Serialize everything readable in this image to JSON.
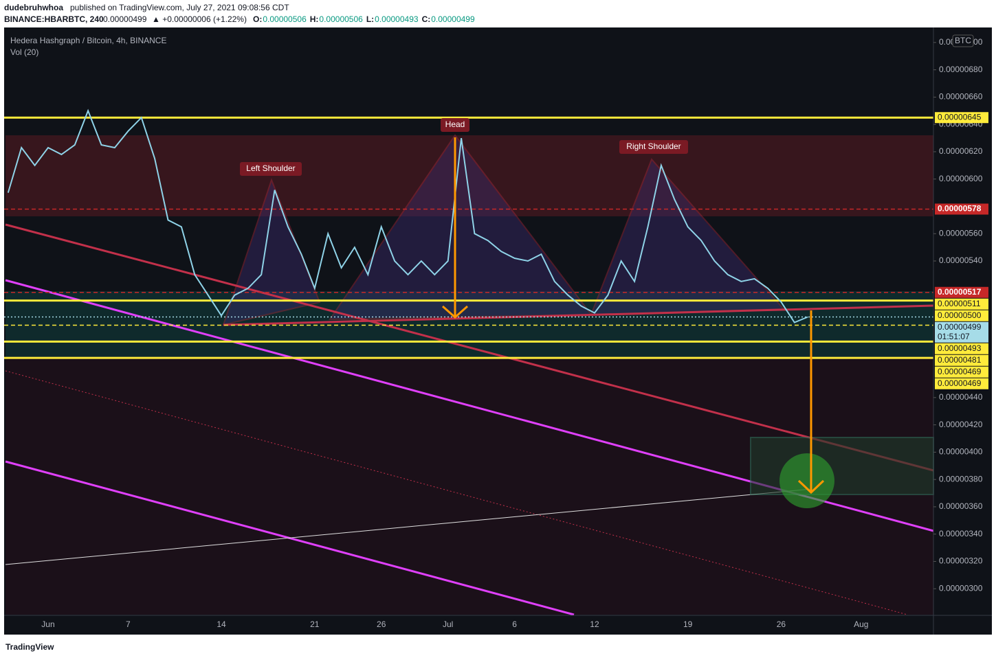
{
  "header": {
    "author": "dudebruhwhoa",
    "published": "published on TradingView.com, July 27, 2021 09:08:56 CDT",
    "symbol": "BINANCE:HBARBTC, 240",
    "last": "0.00000499",
    "change": "▲ +0.00000006 (+1.22%)",
    "ohlc": [
      {
        "key": "O:",
        "value": "0.00000506"
      },
      {
        "key": "H:",
        "value": "0.00000506"
      },
      {
        "key": "L:",
        "value": "0.00000493"
      },
      {
        "key": "C:",
        "value": "0.00000499"
      }
    ]
  },
  "chart_data": {
    "type": "line",
    "title": "Hedera Hashgraph / Bitcoin, 4h, BINANCE",
    "subtitle": "Vol (20)",
    "currency": "BTC",
    "color": "#8fd3e8",
    "categories": [
      null,
      null,
      null,
      "Jun",
      null,
      null,
      null,
      null,
      null,
      "7",
      null,
      null,
      null,
      null,
      null,
      null,
      "14",
      null,
      null,
      null,
      null,
      null,
      null,
      "21",
      null,
      null,
      null,
      null,
      "26",
      null,
      null,
      null,
      null,
      "Jul",
      null,
      null,
      null,
      null,
      "6",
      null,
      null,
      null,
      null,
      null,
      "12",
      null,
      null,
      null,
      null,
      null,
      null,
      "19",
      null,
      null,
      null,
      null,
      null,
      null,
      "26",
      null,
      null,
      null,
      null,
      null,
      "Aug",
      null,
      null,
      null,
      null,
      null
    ],
    "values": [
      5.9e-06,
      6.23e-06,
      6.1e-06,
      6.23e-06,
      6.18e-06,
      6.25e-06,
      6.5e-06,
      6.25e-06,
      6.23e-06,
      6.35e-06,
      6.45e-06,
      6.15e-06,
      5.7e-06,
      5.65e-06,
      5.3e-06,
      5.15e-06,
      5e-06,
      5.15e-06,
      5.2e-06,
      5.3e-06,
      5.92e-06,
      5.65e-06,
      5.45e-06,
      5.2e-06,
      5.6e-06,
      5.35e-06,
      5.5e-06,
      5.3e-06,
      5.65e-06,
      5.4e-06,
      5.3e-06,
      5.4e-06,
      5.3e-06,
      5.4e-06,
      6.3e-06,
      5.6e-06,
      5.55e-06,
      5.47e-06,
      5.42e-06,
      5.4e-06,
      5.45e-06,
      5.25e-06,
      5.15e-06,
      5.07e-06,
      5.02e-06,
      5.15e-06,
      5.4e-06,
      5.25e-06,
      5.65e-06,
      6.1e-06,
      5.85e-06,
      5.65e-06,
      5.55e-06,
      5.4e-06,
      5.3e-06,
      5.25e-06,
      5.27e-06,
      5.2e-06,
      5.1e-06,
      4.95e-06,
      4.99e-06,
      null,
      null,
      null,
      null,
      null,
      null,
      null,
      null,
      null
    ],
    "ylim": [
      2.81e-06,
      7.11e-06
    ],
    "yticks": [
      {
        "value": 7e-06,
        "label": "0.00000700"
      },
      {
        "value": 6.8e-06,
        "label": "0.00000680"
      },
      {
        "value": 6.6e-06,
        "label": "0.00000660"
      },
      {
        "value": 6.4e-06,
        "label": "0.00000640"
      },
      {
        "value": 6.2e-06,
        "label": "0.00000620"
      },
      {
        "value": 6e-06,
        "label": "0.00000600"
      },
      {
        "value": 5.6e-06,
        "label": "0.00000560"
      },
      {
        "value": 5.4e-06,
        "label": "0.00000540"
      },
      {
        "value": 4.4e-06,
        "label": "0.00000440"
      },
      {
        "value": 4.2e-06,
        "label": "0.00000420"
      },
      {
        "value": 4e-06,
        "label": "0.00000400"
      },
      {
        "value": 3.8e-06,
        "label": "0.00000380"
      },
      {
        "value": 3.6e-06,
        "label": "0.00000360"
      },
      {
        "value": 3.4e-06,
        "label": "0.00000340"
      },
      {
        "value": 3.2e-06,
        "label": "0.00000320"
      },
      {
        "value": 3e-06,
        "label": "0.00000300"
      }
    ],
    "grid": false,
    "price_tags": [
      {
        "value": 6.45e-06,
        "label": "0.00000645",
        "color": "#ffeb3b",
        "line": "solid"
      },
      {
        "value": 5.78e-06,
        "label": "0.00000578",
        "color": "#c62828",
        "line": "dashed"
      },
      {
        "value": 5.17e-06,
        "label": "0.00000517",
        "color": "#c62828",
        "line": "dashed"
      },
      {
        "value": 5.11e-06,
        "label": "0.00000511",
        "color": "#ffeb3b",
        "line": "solid"
      },
      {
        "value": 5e-06,
        "label": "0.00000500",
        "color": "#ffeb3b"
      },
      {
        "value": 4.99e-06,
        "label": "0.00000499",
        "color": "#a6dce8",
        "line": "dotted",
        "sublabel": "01:51:07"
      },
      {
        "value": 4.93e-06,
        "label": "0.00000493",
        "color": "#ffeb3b",
        "line": "dashed"
      },
      {
        "value": 4.81e-06,
        "label": "0.00000481",
        "color": "#ffeb3b",
        "line": "solid"
      },
      {
        "value": 4.69e-06,
        "label": "0.00000469",
        "color": "#ffeb3b",
        "line": "solid"
      },
      {
        "value": 4.69e-06,
        "label": "0.00000469",
        "color": "#ffeb3b"
      }
    ],
    "annotations": [
      "Left Shoulder",
      "Head",
      "Right Shoulder"
    ]
  },
  "footer": {
    "logo": "TradingView"
  }
}
